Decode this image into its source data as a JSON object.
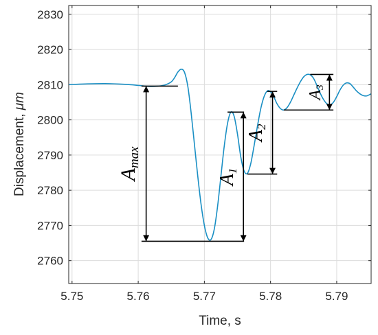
{
  "chart_data": {
    "type": "line",
    "xlabel": "Time, s",
    "ylabel_main": "Displacement, ",
    "ylabel_unit": "μm",
    "xlim": [
      5.7495,
      5.7952
    ],
    "ylim": [
      2753.5,
      2832.5
    ],
    "xticks": [
      5.75,
      5.76,
      5.77,
      5.78,
      5.79
    ],
    "xtick_labels": [
      "5.75",
      "5.76",
      "5.77",
      "5.78",
      "5.79"
    ],
    "yticks": [
      2760,
      2770,
      2780,
      2790,
      2800,
      2810,
      2820,
      2830
    ],
    "ytick_labels": [
      "2760",
      "2770",
      "2780",
      "2790",
      "2800",
      "2810",
      "2820",
      "2830"
    ],
    "grid": true,
    "series_color": "#1a8fc4",
    "series": [
      {
        "x": [
          5.7495,
          5.752,
          5.755,
          5.758,
          5.76,
          5.761,
          5.762,
          5.763,
          5.764,
          5.765,
          5.7655,
          5.766,
          5.7665,
          5.767,
          5.7675,
          5.768,
          5.7685,
          5.769,
          5.7695,
          5.77,
          5.7705,
          5.771,
          5.7715,
          5.772,
          5.7725,
          5.773,
          5.7735,
          5.774,
          5.7745,
          5.775,
          5.7755,
          5.776,
          5.7765,
          5.777,
          5.7775,
          5.778,
          5.7785,
          5.779,
          5.7795,
          5.78,
          5.7805,
          5.781,
          5.7815,
          5.782,
          5.7825,
          5.783,
          5.7835,
          5.784,
          5.7845,
          5.785,
          5.7855,
          5.786,
          5.7865,
          5.787,
          5.7875,
          5.788,
          5.7885,
          5.789,
          5.7895,
          5.79,
          5.7905,
          5.791,
          5.7915,
          5.792,
          5.7925,
          5.793,
          5.7935,
          5.794,
          5.7945,
          5.795,
          5.7952
        ],
        "y": [
          2810.0,
          2810.2,
          2810.3,
          2810.1,
          2809.8,
          2809.6,
          2809.5,
          2809.6,
          2809.9,
          2810.8,
          2812.0,
          2813.6,
          2814.4,
          2813.5,
          2809.5,
          2802.0,
          2793.0,
          2784.0,
          2776.0,
          2770.0,
          2766.5,
          2766.0,
          2769.0,
          2775.5,
          2784.0,
          2792.5,
          2799.0,
          2802.2,
          2801.0,
          2796.0,
          2789.5,
          2785.5,
          2784.8,
          2787.5,
          2792.5,
          2798.0,
          2803.0,
          2806.5,
          2808.2,
          2808.0,
          2806.5,
          2804.5,
          2803.2,
          2802.8,
          2803.5,
          2805.0,
          2807.0,
          2809.0,
          2810.8,
          2812.2,
          2812.9,
          2812.8,
          2811.8,
          2809.8,
          2807.6,
          2805.8,
          2804.6,
          2804.3,
          2805.0,
          2806.6,
          2808.5,
          2809.9,
          2810.5,
          2810.3,
          2809.3,
          2808.2,
          2807.4,
          2806.9,
          2806.8,
          2807.2,
          2807.4
        ]
      }
    ],
    "annotations": [
      {
        "label": "A",
        "sub": "max",
        "x": 5.7612,
        "y_top": 2809.6,
        "y_bot": 2765.5,
        "ref_top_x": [
          5.7605,
          5.766
        ],
        "ref_bot_x": [
          5.7605,
          5.776
        ]
      },
      {
        "label": "A",
        "sub": "1",
        "x": 5.7759,
        "y_top": 2802.2,
        "y_bot": 2765.5,
        "ref_top_x": [
          5.7735,
          5.776
        ]
      },
      {
        "label": "A",
        "sub": "2",
        "x": 5.7803,
        "y_top": 2808.1,
        "y_bot": 2784.6,
        "ref_top_x": [
          5.7795,
          5.781
        ],
        "ref_bot_x": [
          5.7765,
          5.781
        ]
      },
      {
        "label": "A",
        "sub": "3",
        "x": 5.7889,
        "y_top": 2812.9,
        "y_bot": 2802.8,
        "ref_top_x": [
          5.786,
          5.7895
        ],
        "ref_bot_x": [
          5.782,
          5.7895
        ]
      }
    ]
  }
}
